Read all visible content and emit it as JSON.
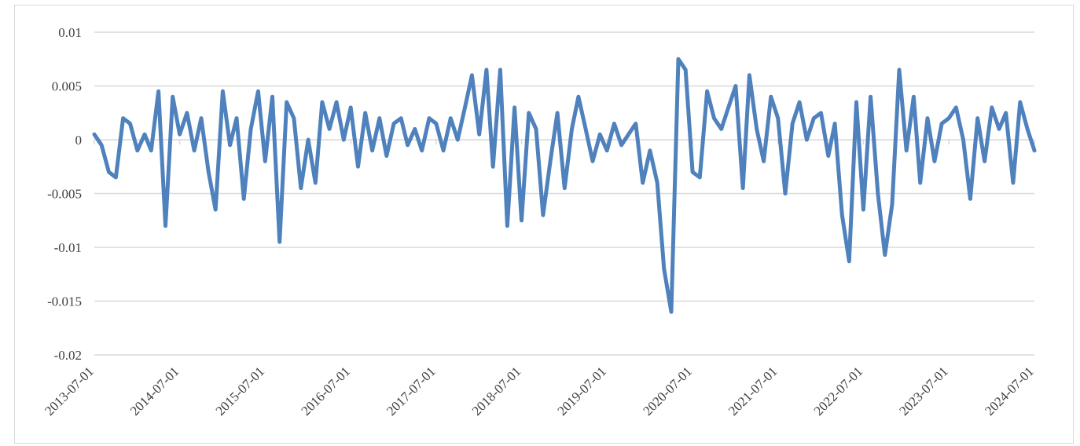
{
  "chart_data": {
    "type": "line",
    "x": [
      "2013-07-01",
      "2013-08-01",
      "2013-09-01",
      "2013-10-01",
      "2013-11-01",
      "2013-12-01",
      "2014-01-01",
      "2014-02-01",
      "2014-03-01",
      "2014-04-01",
      "2014-05-01",
      "2014-06-01",
      "2014-07-01",
      "2014-08-01",
      "2014-09-01",
      "2014-10-01",
      "2014-11-01",
      "2014-12-01",
      "2015-01-01",
      "2015-02-01",
      "2015-03-01",
      "2015-04-01",
      "2015-05-01",
      "2015-06-01",
      "2015-07-01",
      "2015-08-01",
      "2015-09-01",
      "2015-10-01",
      "2015-11-01",
      "2015-12-01",
      "2016-01-01",
      "2016-02-01",
      "2016-03-01",
      "2016-04-01",
      "2016-05-01",
      "2016-06-01",
      "2016-07-01",
      "2016-08-01",
      "2016-09-01",
      "2016-10-01",
      "2016-11-01",
      "2016-12-01",
      "2017-01-01",
      "2017-02-01",
      "2017-03-01",
      "2017-04-01",
      "2017-05-01",
      "2017-06-01",
      "2017-07-01",
      "2017-08-01",
      "2017-09-01",
      "2017-10-01",
      "2017-11-01",
      "2017-12-01",
      "2018-01-01",
      "2018-02-01",
      "2018-03-01",
      "2018-04-01",
      "2018-05-01",
      "2018-06-01",
      "2018-07-01",
      "2018-08-01",
      "2018-09-01",
      "2018-10-01",
      "2018-11-01",
      "2018-12-01",
      "2019-01-01",
      "2019-02-01",
      "2019-03-01",
      "2019-04-01",
      "2019-05-01",
      "2019-06-01",
      "2019-07-01",
      "2019-08-01",
      "2019-09-01",
      "2019-10-01",
      "2019-11-01",
      "2019-12-01",
      "2020-01-01",
      "2020-02-01",
      "2020-03-01",
      "2020-04-01",
      "2020-05-01",
      "2020-06-01",
      "2020-07-01",
      "2020-08-01",
      "2020-09-01",
      "2020-10-01",
      "2020-11-01",
      "2020-12-01",
      "2021-01-01",
      "2021-02-01",
      "2021-03-01",
      "2021-04-01",
      "2021-05-01",
      "2021-06-01",
      "2021-07-01",
      "2021-08-01",
      "2021-09-01",
      "2021-10-01",
      "2021-11-01",
      "2021-12-01",
      "2022-01-01",
      "2022-02-01",
      "2022-03-01",
      "2022-04-01",
      "2022-05-01",
      "2022-06-01",
      "2022-07-01",
      "2022-08-01",
      "2022-09-01",
      "2022-10-01",
      "2022-11-01",
      "2022-12-01",
      "2023-01-01",
      "2023-02-01",
      "2023-03-01",
      "2023-04-01",
      "2023-05-01",
      "2023-06-01",
      "2023-07-01",
      "2023-08-01",
      "2023-09-01",
      "2023-10-01",
      "2023-11-01",
      "2023-12-01",
      "2024-01-01",
      "2024-02-01",
      "2024-03-01",
      "2024-04-01",
      "2024-05-01",
      "2024-06-01",
      "2024-07-01"
    ],
    "series": [
      {
        "color": "#4f81bd",
        "values": [
          0.0005,
          -0.0005,
          -0.003,
          -0.0035,
          0.002,
          0.0015,
          -0.001,
          0.0005,
          -0.001,
          0.0045,
          -0.008,
          0.004,
          0.0005,
          0.0025,
          -0.001,
          0.002,
          -0.003,
          -0.0065,
          0.0045,
          -0.0005,
          0.002,
          -0.0055,
          0.001,
          0.0045,
          -0.002,
          0.004,
          -0.0095,
          0.0035,
          0.002,
          -0.0045,
          0,
          -0.004,
          0.0035,
          0.001,
          0.0035,
          0,
          0.003,
          -0.0025,
          0.0025,
          -0.001,
          0.002,
          -0.0015,
          0.0015,
          0.002,
          -0.0005,
          0.001,
          -0.001,
          0.002,
          0.0015,
          -0.001,
          0.002,
          0,
          0.003,
          0.006,
          0.0005,
          0.0065,
          -0.0025,
          0.0065,
          -0.008,
          0.003,
          -0.0075,
          0.0025,
          0.001,
          -0.007,
          -0.002,
          0.0025,
          -0.0045,
          0.001,
          0.004,
          0.001,
          -0.002,
          0.0005,
          -0.001,
          0.0015,
          -0.0005,
          0.0005,
          0.0015,
          -0.004,
          -0.001,
          -0.004,
          -0.012,
          -0.016,
          0.0075,
          0.0065,
          -0.003,
          -0.0035,
          0.0045,
          0.002,
          0.001,
          0.003,
          0.005,
          -0.0045,
          0.006,
          0.001,
          -0.002,
          0.004,
          0.002,
          -0.005,
          0.0015,
          0.0035,
          0,
          0.002,
          0.0025,
          -0.0015,
          0.0015,
          -0.007,
          -0.0113,
          0.0035,
          -0.0065,
          0.004,
          -0.005,
          -0.0107,
          -0.006,
          0.0065,
          -0.001,
          0.004,
          -0.004,
          0.002,
          -0.002,
          0.0015,
          0.002,
          0.003,
          0,
          -0.0055,
          0.002,
          -0.002,
          0.003,
          0.001,
          0.0025,
          -0.004,
          0.0035,
          0.001,
          -0.001
        ]
      }
    ],
    "xlim": [
      "2013-07-01",
      "2024-07-01"
    ],
    "xticks": [
      "2013-07-01",
      "2014-07-01",
      "2015-07-01",
      "2016-07-01",
      "2017-07-01",
      "2018-07-01",
      "2019-07-01",
      "2020-07-01",
      "2021-07-01",
      "2022-07-01",
      "2023-07-01",
      "2024-07-01"
    ],
    "ylim": [
      -0.02,
      0.01
    ],
    "yticks": [
      0.01,
      0.005,
      0,
      -0.005,
      -0.01,
      -0.015,
      -0.02
    ],
    "grid": true
  }
}
